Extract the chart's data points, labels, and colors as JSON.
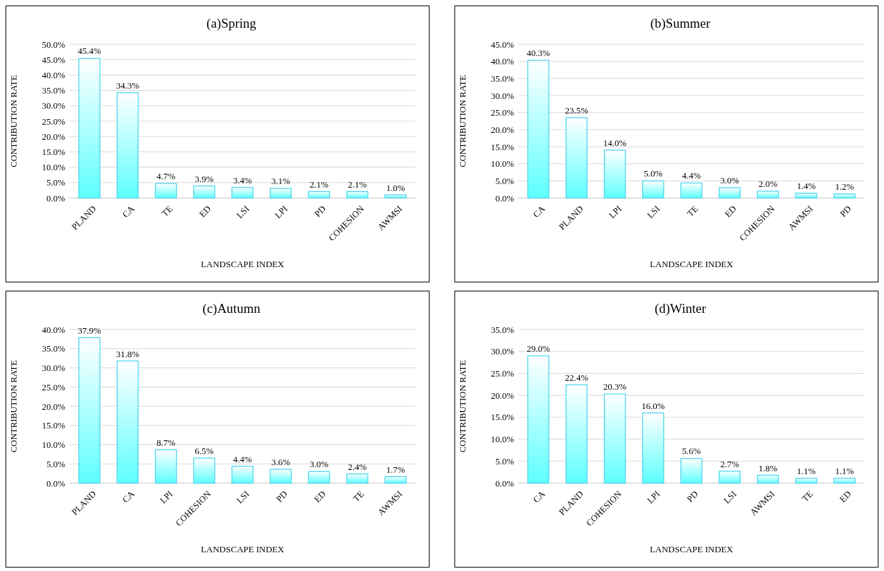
{
  "chart_data": [
    {
      "type": "bar",
      "title": "(a)Spring",
      "xlabel": "LANDSCAPE INDEX",
      "ylabel": "CONTRIBUTION RATE",
      "categories": [
        "PLAND",
        "CA",
        "TE",
        "ED",
        "LSI",
        "LPI",
        "PD",
        "COHESION",
        "AWMSI"
      ],
      "values": [
        45.4,
        34.3,
        4.7,
        3.9,
        3.4,
        3.1,
        2.1,
        2.1,
        1.0
      ],
      "value_labels": [
        "45.4%",
        "34.3%",
        "4.7%",
        "3.9%",
        "3.4%",
        "3.1%",
        "2.1%",
        "2.1%",
        "1.0%"
      ],
      "color": "#4fd6ef",
      "ylim": [
        0,
        50
      ],
      "yticks": [
        {
          "value": 0,
          "label": "0.0%"
        },
        {
          "value": 5,
          "label": "5.0%"
        },
        {
          "value": 10,
          "label": "10.0%"
        },
        {
          "value": 15,
          "label": "15.0%"
        },
        {
          "value": 20,
          "label": "20.0%"
        },
        {
          "value": 25,
          "label": "25.0%"
        },
        {
          "value": 30,
          "label": "30.0%"
        },
        {
          "value": 35,
          "label": "35.0%"
        },
        {
          "value": 40,
          "label": "40.0%"
        },
        {
          "value": 45,
          "label": "45.0%"
        },
        {
          "value": 50,
          "label": "50.0%"
        }
      ],
      "grid": "y"
    },
    {
      "type": "bar",
      "title": "(b)Summer",
      "xlabel": "LANDSCAPE INDEX",
      "ylabel": "CONTRIBUTION RATE",
      "categories": [
        "CA",
        "PLAND",
        "LPI",
        "LSI",
        "TE",
        "ED",
        "COHESION",
        "AWMSI",
        "PD"
      ],
      "values": [
        40.3,
        23.5,
        14.0,
        5.0,
        4.4,
        3.0,
        2.0,
        1.4,
        1.2
      ],
      "value_labels": [
        "40.3%",
        "23.5%",
        "14.0%",
        "5.0%",
        "4.4%",
        "3.0%",
        "2.0%",
        "1.4%",
        "1.2%"
      ],
      "color": "#4fd6ef",
      "ylim": [
        0,
        45
      ],
      "yticks": [
        {
          "value": 0,
          "label": "0.0%"
        },
        {
          "value": 5,
          "label": "5.0%"
        },
        {
          "value": 10,
          "label": "10.0%"
        },
        {
          "value": 15,
          "label": "15.0%"
        },
        {
          "value": 20,
          "label": "20.0%"
        },
        {
          "value": 25,
          "label": "25.0%"
        },
        {
          "value": 30,
          "label": "30.0%"
        },
        {
          "value": 35,
          "label": "35.0%"
        },
        {
          "value": 40,
          "label": "40.0%"
        },
        {
          "value": 45,
          "label": "45.0%"
        }
      ],
      "grid": "y"
    },
    {
      "type": "bar",
      "title": "(c)Autumn",
      "xlabel": "LANDSCAPE INDEX",
      "ylabel": "CONTRIBUTION RATE",
      "categories": [
        "PLAND",
        "CA",
        "LPI",
        "COHESION",
        "LSI",
        "PD",
        "ED",
        "TE",
        "AWMSI"
      ],
      "values": [
        37.9,
        31.8,
        8.7,
        6.5,
        4.4,
        3.6,
        3.0,
        2.4,
        1.7
      ],
      "value_labels": [
        "37.9%",
        "31.8%",
        "8.7%",
        "6.5%",
        "4.4%",
        "3.6%",
        "3.0%",
        "2.4%",
        "1.7%"
      ],
      "color": "#4fd6ef",
      "ylim": [
        0,
        40
      ],
      "yticks": [
        {
          "value": 0,
          "label": "0.0%"
        },
        {
          "value": 5,
          "label": "5.0%"
        },
        {
          "value": 10,
          "label": "10.0%"
        },
        {
          "value": 15,
          "label": "15.0%"
        },
        {
          "value": 20,
          "label": "20.0%"
        },
        {
          "value": 25,
          "label": "25.0%"
        },
        {
          "value": 30,
          "label": "30.0%"
        },
        {
          "value": 35,
          "label": "35.0%"
        },
        {
          "value": 40,
          "label": "40.0%"
        }
      ],
      "grid": "y"
    },
    {
      "type": "bar",
      "title": "(d)Winter",
      "xlabel": "LANDSCAPE INDEX",
      "ylabel": "CONTRIBUTION RATE",
      "categories": [
        "CA",
        "PLAND",
        "COHESION",
        "LPI",
        "PD",
        "LSI",
        "AWMSI",
        "TE",
        "ED"
      ],
      "values": [
        29.0,
        22.4,
        20.3,
        16.0,
        5.6,
        2.7,
        1.8,
        1.1,
        1.1
      ],
      "value_labels": [
        "29.0%",
        "22.4%",
        "20.3%",
        "16.0%",
        "5.6%",
        "2.7%",
        "1.8%",
        "1.1%",
        "1.1%"
      ],
      "color": "#4fd6ef",
      "ylim": [
        0,
        35
      ],
      "yticks": [
        {
          "value": 0,
          "label": "0.0%"
        },
        {
          "value": 5,
          "label": "5.0%"
        },
        {
          "value": 10,
          "label": "10.0%"
        },
        {
          "value": 15,
          "label": "15.0%"
        },
        {
          "value": 20,
          "label": "20.0%"
        },
        {
          "value": 25,
          "label": "25.0%"
        },
        {
          "value": 30,
          "label": "30.0%"
        },
        {
          "value": 35,
          "label": "35.0%"
        }
      ],
      "grid": "y"
    }
  ]
}
